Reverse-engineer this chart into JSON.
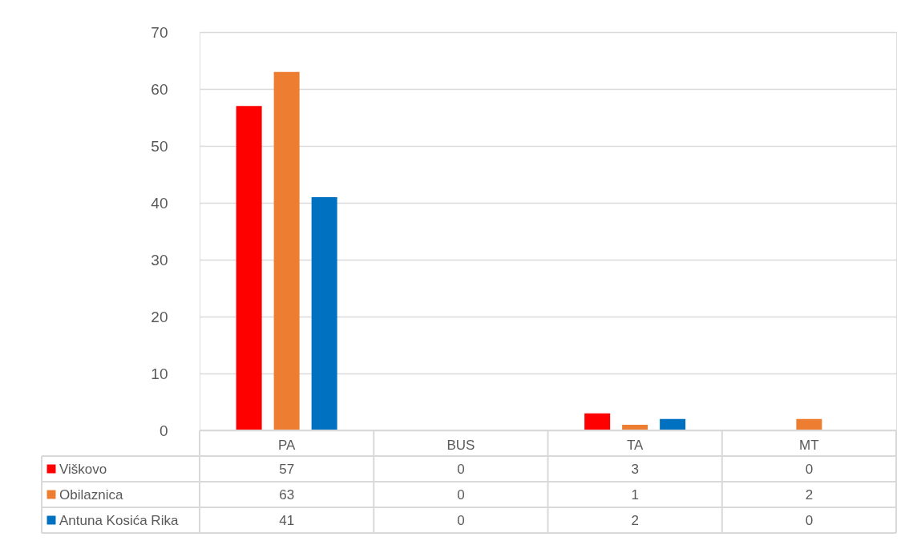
{
  "chart_data": {
    "type": "bar",
    "categories": [
      "PA",
      "BUS",
      "TA",
      "MT"
    ],
    "series": [
      {
        "name": "Viškovo",
        "color": "#ff0000",
        "values": [
          57,
          0,
          3,
          0
        ]
      },
      {
        "name": "Obilaznica",
        "color": "#ed7d31",
        "values": [
          63,
          0,
          1,
          2
        ]
      },
      {
        "name": "Antuna Kosića Rika",
        "color": "#0070c0",
        "values": [
          41,
          0,
          2,
          0
        ]
      }
    ],
    "ylim": [
      0,
      70
    ],
    "yticks": [
      0,
      10,
      20,
      30,
      40,
      50,
      60,
      70
    ],
    "grid": "y",
    "legend": "bottom",
    "data_labels": true
  }
}
